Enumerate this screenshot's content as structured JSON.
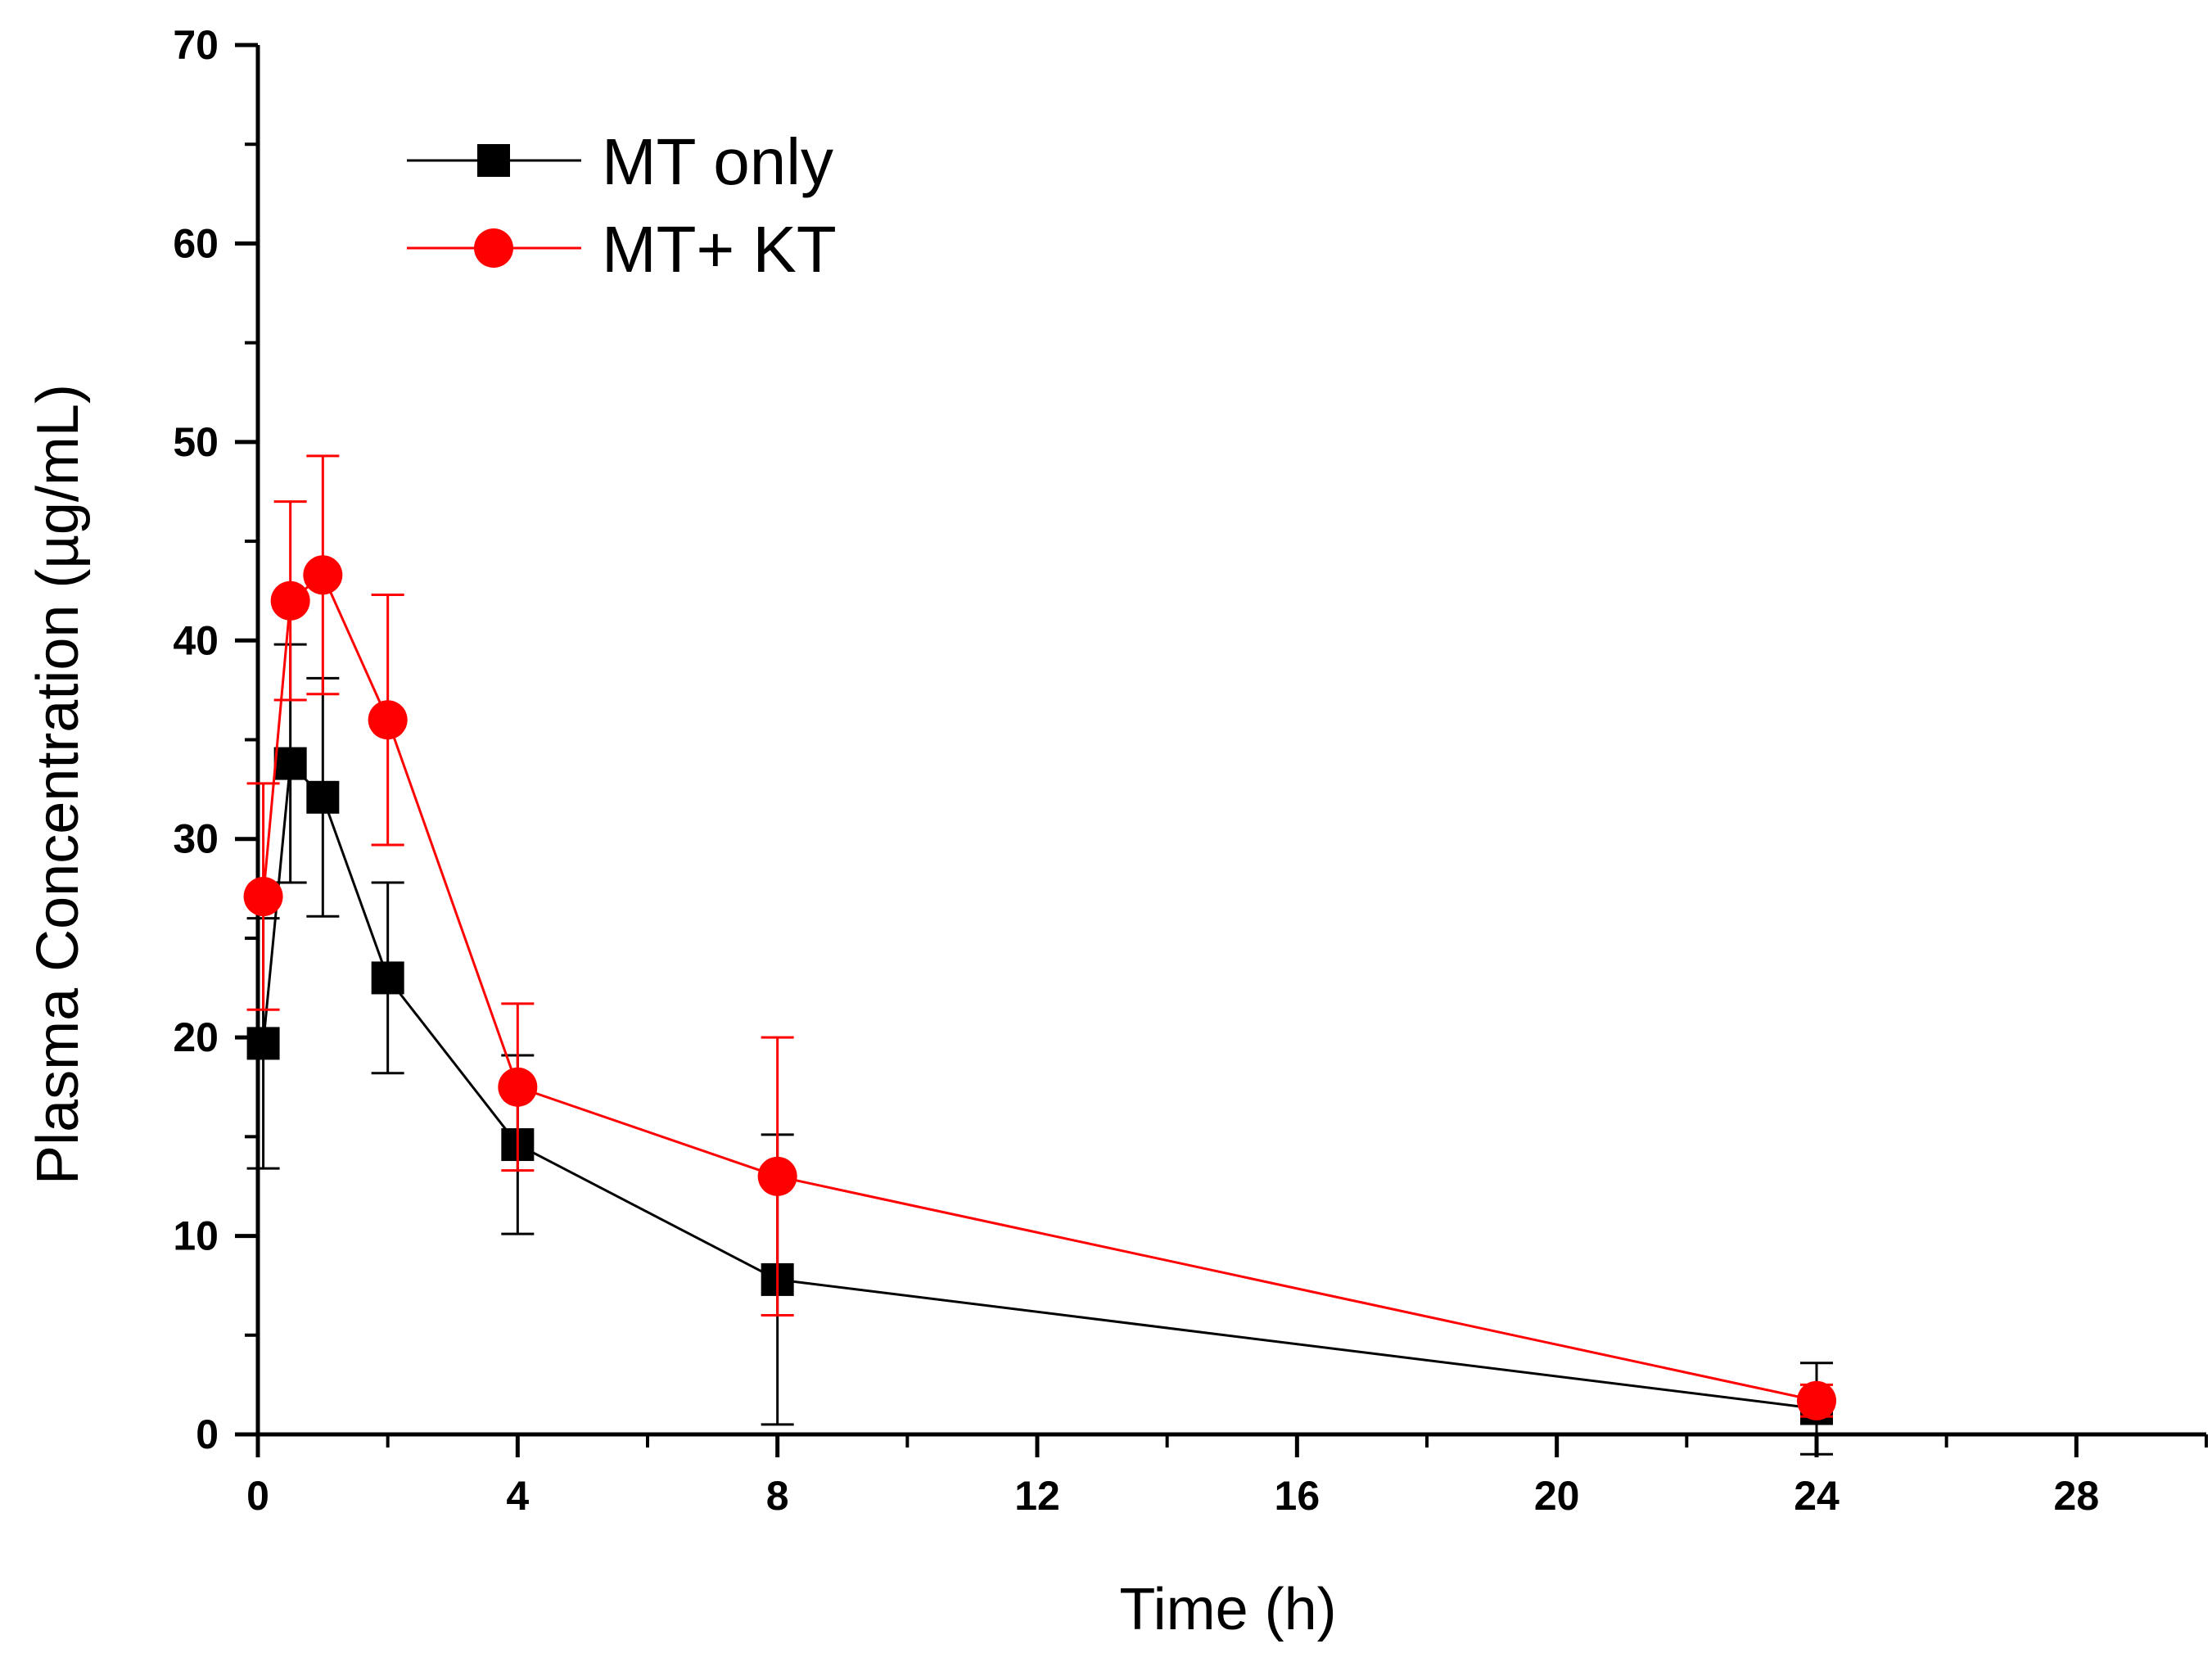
{
  "chart_data": {
    "type": "line",
    "title": "",
    "xlabel": "Time (h)",
    "ylabel": "Plasma Concentration (µg/mL)",
    "xlim": [
      0,
      30
    ],
    "ylim": [
      0,
      70
    ],
    "xticks": [
      0,
      4,
      8,
      12,
      16,
      20,
      24,
      28
    ],
    "yticks": [
      0,
      10,
      20,
      30,
      40,
      50,
      60,
      70
    ],
    "grid": false,
    "legend_position": "top-left",
    "series": [
      {
        "name": "MT only",
        "color": "#000000",
        "marker": "square",
        "points": [
          {
            "x": 0.083,
            "y": 19.7,
            "err": 6.3
          },
          {
            "x": 0.5,
            "y": 33.8,
            "err": 6.0
          },
          {
            "x": 1,
            "y": 32.1,
            "err": 6.0
          },
          {
            "x": 2,
            "y": 23.0,
            "err": 4.8
          },
          {
            "x": 4,
            "y": 14.6,
            "err": 4.5
          },
          {
            "x": 8,
            "y": 7.8,
            "err": 7.3
          },
          {
            "x": 24,
            "y": 1.3,
            "err": 2.3
          }
        ]
      },
      {
        "name": "MT+ KT",
        "color": "#ff0000",
        "marker": "circle",
        "points": [
          {
            "x": 0.083,
            "y": 27.1,
            "err": 5.7
          },
          {
            "x": 0.5,
            "y": 42.0,
            "err": 5.0
          },
          {
            "x": 1,
            "y": 43.3,
            "err": 6.0
          },
          {
            "x": 2,
            "y": 36.0,
            "err": 6.3
          },
          {
            "x": 4,
            "y": 17.5,
            "err": 4.2
          },
          {
            "x": 8,
            "y": 13.0,
            "err": 7.0
          },
          {
            "x": 24,
            "y": 1.7,
            "err": 0.8
          }
        ]
      }
    ]
  }
}
